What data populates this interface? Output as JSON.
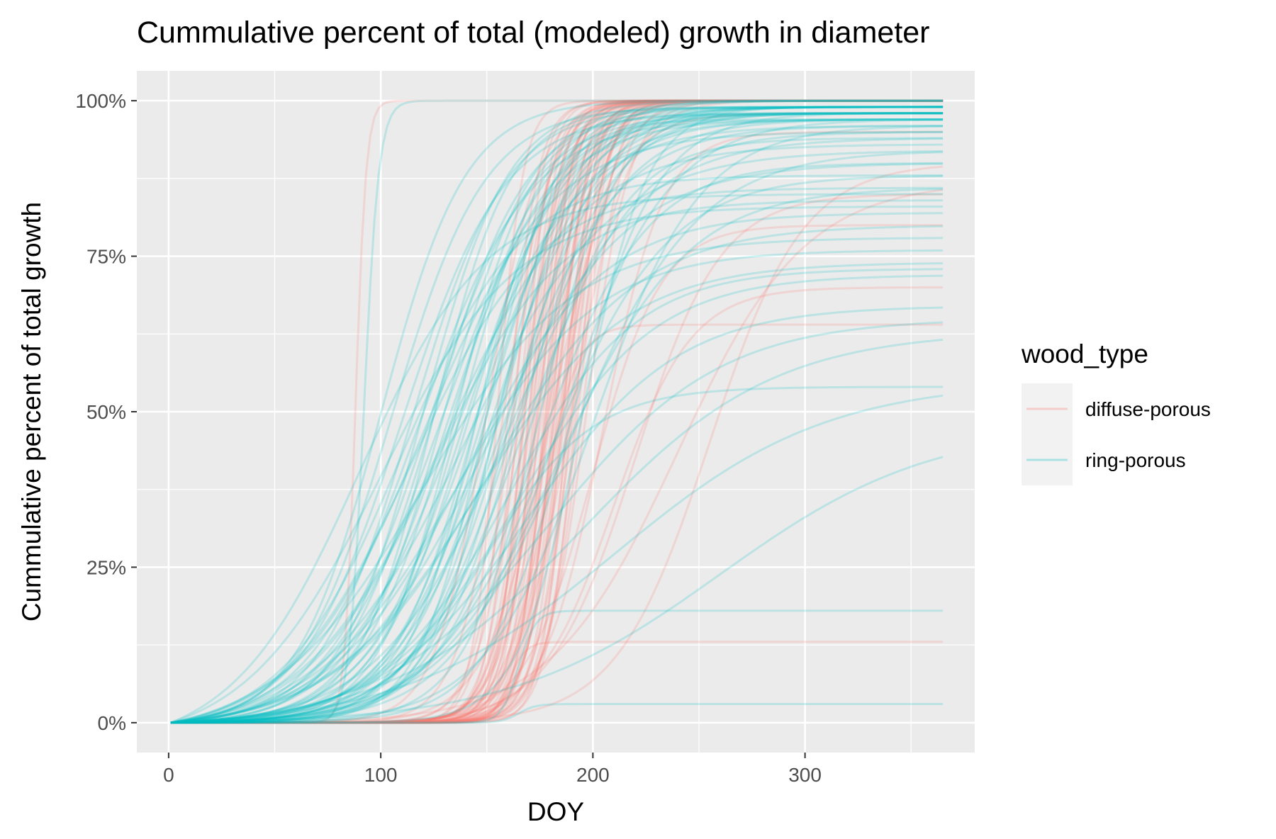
{
  "chart_data": {
    "type": "line",
    "title": "Cummulative percent of total (modeled) growth in diameter",
    "xlabel": "DOY",
    "ylabel": "Cummulative percent of total growth",
    "xlim": [
      -15,
      380
    ],
    "ylim": [
      -0.048,
      1.048
    ],
    "x_ticks": [
      0,
      100,
      200,
      300
    ],
    "x_tick_labels": [
      "0",
      "100",
      "200",
      "300"
    ],
    "x_minor_ticks": [
      50,
      150,
      250,
      350
    ],
    "y_ticks": [
      0,
      0.25,
      0.5,
      0.75,
      1.0
    ],
    "y_tick_labels": [
      "0%",
      "25%",
      "50%",
      "75%",
      "100%"
    ],
    "y_minor_ticks": [
      0.125,
      0.375,
      0.625,
      0.875
    ],
    "x_range_of_curves": [
      1,
      365
    ],
    "grid": true,
    "legend_position": "right",
    "legend": {
      "title": "wood_type",
      "entries": [
        {
          "name": "diffuse-porous",
          "color": "#F8766D"
        },
        {
          "name": "ring-porous",
          "color": "#00BFC4"
        }
      ]
    },
    "series": [
      {
        "name": "diffuse-porous",
        "color": "#F8766D",
        "line_opacity": 0.2,
        "curve_model": "logistic",
        "curves": [
          [
            1.0,
            155,
            6
          ],
          [
            1.0,
            160,
            7
          ],
          [
            1.0,
            163,
            6.5
          ],
          [
            1.0,
            165,
            7.5
          ],
          [
            1.0,
            167,
            6
          ],
          [
            1.0,
            168,
            8
          ],
          [
            1.0,
            170,
            7
          ],
          [
            1.0,
            171,
            9
          ],
          [
            1.0,
            172,
            6.5
          ],
          [
            1.0,
            174,
            8
          ],
          [
            1.0,
            175,
            7
          ],
          [
            1.0,
            176,
            10
          ],
          [
            1.0,
            177,
            6
          ],
          [
            1.0,
            178,
            8.5
          ],
          [
            1.0,
            179,
            7.5
          ],
          [
            1.0,
            180,
            9
          ],
          [
            1.0,
            181,
            6.5
          ],
          [
            1.0,
            182,
            8
          ],
          [
            1.0,
            183,
            7
          ],
          [
            1.0,
            184,
            10
          ],
          [
            1.0,
            185,
            8
          ],
          [
            1.0,
            186,
            7
          ],
          [
            1.0,
            187,
            9
          ],
          [
            1.0,
            188,
            6
          ],
          [
            1.0,
            189,
            8
          ],
          [
            1.0,
            190,
            7.5
          ],
          [
            1.0,
            191,
            9
          ],
          [
            1.0,
            192,
            7
          ],
          [
            1.0,
            193,
            8
          ],
          [
            1.0,
            195,
            9
          ],
          [
            1.0,
            168,
            7
          ],
          [
            1.0,
            173,
            7.5
          ],
          [
            1.0,
            178,
            6.5
          ],
          [
            1.0,
            182,
            7.5
          ],
          [
            1.0,
            186,
            8.5
          ],
          [
            1.0,
            162,
            9
          ],
          [
            1.0,
            166,
            10
          ],
          [
            1.0,
            170,
            8.5
          ],
          [
            1.0,
            174,
            9.5
          ],
          [
            1.0,
            179,
            11
          ],
          [
            1.0,
            150,
            12
          ],
          [
            1.0,
            158,
            11
          ],
          [
            1.0,
            185,
            12
          ],
          [
            1.0,
            190,
            13
          ],
          [
            1.0,
            197,
            10
          ],
          [
            1.0,
            88,
            2.5
          ],
          [
            0.64,
            175,
            8
          ],
          [
            0.13,
            160,
            4
          ],
          [
            0.9,
            255,
            22
          ],
          [
            0.8,
            200,
            16
          ],
          [
            0.87,
            240,
            30
          ],
          [
            0.95,
            205,
            14
          ],
          [
            0.98,
            180,
            15
          ],
          [
            0.7,
            210,
            18
          ],
          [
            0.85,
            220,
            20
          ]
        ]
      },
      {
        "name": "ring-porous",
        "color": "#00BFC4",
        "line_opacity": 0.2,
        "curve_model": "logistic",
        "curves": [
          [
            1.0,
            92,
            3.5
          ],
          [
            1.0,
            100,
            20
          ],
          [
            0.99,
            105,
            22
          ],
          [
            0.98,
            110,
            24
          ],
          [
            0.99,
            115,
            22
          ],
          [
            0.97,
            118,
            26
          ],
          [
            1.0,
            120,
            20
          ],
          [
            0.98,
            123,
            24
          ],
          [
            0.99,
            125,
            22
          ],
          [
            0.97,
            128,
            26
          ],
          [
            1.0,
            130,
            21
          ],
          [
            0.98,
            132,
            24
          ],
          [
            0.99,
            134,
            22
          ],
          [
            0.96,
            136,
            28
          ],
          [
            1.0,
            138,
            20
          ],
          [
            0.98,
            140,
            23
          ],
          [
            0.99,
            142,
            22
          ],
          [
            0.97,
            144,
            25
          ],
          [
            1.0,
            146,
            20
          ],
          [
            0.98,
            148,
            22
          ],
          [
            0.99,
            150,
            21
          ],
          [
            0.97,
            152,
            24
          ],
          [
            0.98,
            154,
            22
          ],
          [
            0.99,
            156,
            20
          ],
          [
            0.96,
            158,
            26
          ],
          [
            0.98,
            160,
            22
          ],
          [
            0.99,
            162,
            20
          ],
          [
            0.97,
            164,
            24
          ],
          [
            0.98,
            166,
            21
          ],
          [
            0.95,
            168,
            26
          ],
          [
            0.99,
            125,
            18
          ],
          [
            0.98,
            135,
            18
          ],
          [
            0.97,
            145,
            17
          ],
          [
            0.99,
            150,
            16
          ],
          [
            0.98,
            155,
            17
          ],
          [
            0.95,
            120,
            30
          ],
          [
            0.93,
            130,
            32
          ],
          [
            0.92,
            140,
            34
          ],
          [
            0.9,
            150,
            33
          ],
          [
            0.94,
            160,
            30
          ],
          [
            0.88,
            110,
            28
          ],
          [
            0.86,
            115,
            30
          ],
          [
            0.84,
            125,
            30
          ],
          [
            0.82,
            140,
            32
          ],
          [
            0.8,
            150,
            35
          ],
          [
            0.85,
            90,
            30
          ],
          [
            0.83,
            100,
            32
          ],
          [
            0.78,
            120,
            35
          ],
          [
            0.76,
            135,
            33
          ],
          [
            0.74,
            145,
            35
          ],
          [
            0.73,
            160,
            30
          ],
          [
            0.72,
            165,
            32
          ],
          [
            0.9,
            175,
            25
          ],
          [
            0.88,
            180,
            28
          ],
          [
            0.86,
            185,
            30
          ],
          [
            0.67,
            170,
            35
          ],
          [
            0.65,
            180,
            40
          ],
          [
            0.63,
            195,
            45
          ],
          [
            0.54,
            150,
            25
          ],
          [
            0.55,
            210,
            50
          ],
          [
            0.48,
            260,
            50
          ],
          [
            0.18,
            165,
            4
          ],
          [
            0.03,
            165,
            4
          ],
          [
            0.99,
            175,
            18
          ],
          [
            0.98,
            190,
            20
          ],
          [
            0.99,
            195,
            15
          ],
          [
            0.97,
            185,
            25
          ],
          [
            0.96,
            200,
            25
          ],
          [
            0.92,
            190,
            30
          ],
          [
            0.94,
            170,
            22
          ]
        ]
      }
    ]
  }
}
